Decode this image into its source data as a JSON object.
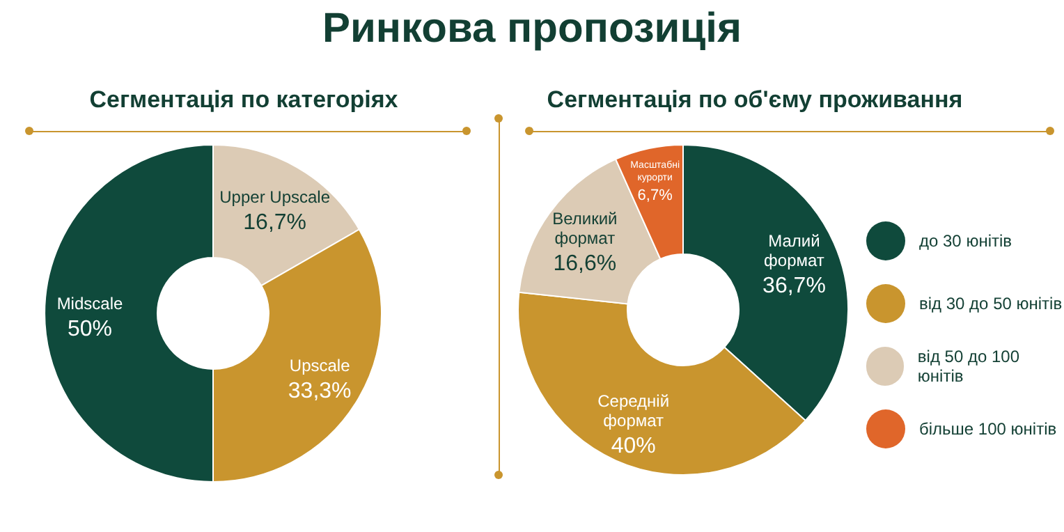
{
  "chart_data": [
    {
      "type": "other",
      "title": "Ринкова пропозиція"
    },
    {
      "type": "donut",
      "title": "Сегментація по категоріях",
      "categories": [
        "Upper Upscale",
        "Upscale",
        "Midscale"
      ],
      "values": [
        16.7,
        33.3,
        50
      ],
      "value_labels": [
        "16,7%",
        "33,3%",
        "50%"
      ],
      "colors": [
        "#dccbb5",
        "#c9952e",
        "#0f4a3c"
      ],
      "legend": false
    },
    {
      "type": "donut",
      "title": "Сегментація по об'єму проживання",
      "categories": [
        "до 30 юнітів",
        "від 30 до 50 юнітів",
        "від 50 до 100 юнітів",
        "більше 100 юнітів"
      ],
      "values": [
        36.7,
        40,
        16.6,
        6.7
      ],
      "value_labels": [
        "36,7%",
        "40%",
        "16,6%",
        "6,7%"
      ],
      "colors": [
        "#0f4a3c",
        "#c9952e",
        "#dccbb5",
        "#e0662a"
      ],
      "legend": "right",
      "annotations": [
        {
          "text": "Малий формат",
          "x": "до 30 юнітів"
        },
        {
          "text": "Середній формат",
          "x": "від 30 до 50 юнітів"
        },
        {
          "text": "Великий формат",
          "x": "від 50 до 100 юнітів"
        },
        {
          "text": "Масштабні курорти",
          "x": "більше 100 юнітів"
        }
      ]
    }
  ]
}
